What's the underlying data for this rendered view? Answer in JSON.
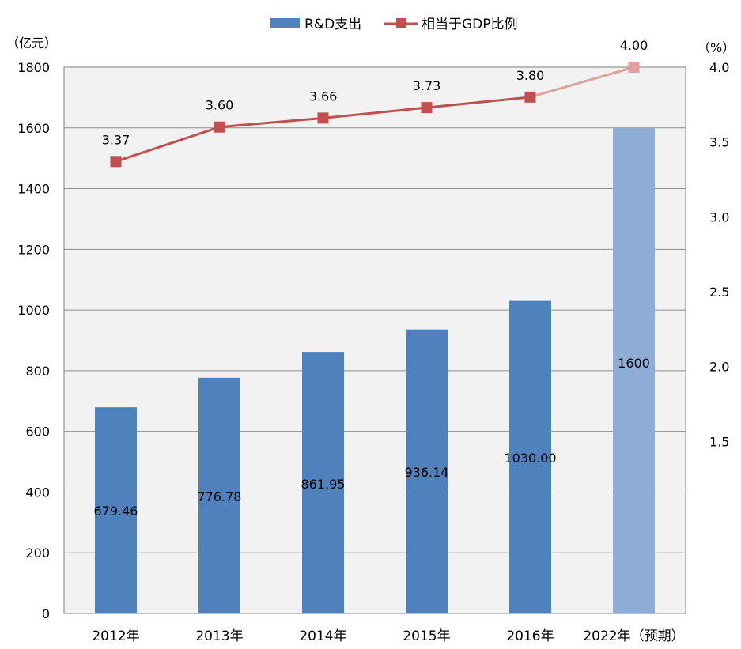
{
  "chart_data": {
    "type": "bar+line",
    "categories": [
      "2012年",
      "2013年",
      "2014年",
      "2015年",
      "2016年",
      "2022年（预期）"
    ],
    "series": [
      {
        "name": "R&D支出",
        "type": "bar",
        "axis": "left",
        "values": [
          679.46,
          776.78,
          861.95,
          936.14,
          1030.0,
          1600
        ],
        "labels": [
          "679.46",
          "776.78",
          "861.95",
          "936.14",
          "1030.00",
          "1600"
        ],
        "color": "#4F81BD",
        "projected_color": "#8EAED8"
      },
      {
        "name": "相当于GDP比例",
        "type": "line",
        "axis": "right",
        "values": [
          3.37,
          3.6,
          3.66,
          3.73,
          3.8,
          4.0
        ],
        "labels": [
          "3.37",
          "3.60",
          "3.66",
          "3.73",
          "3.80",
          "4.00"
        ],
        "color": "#C0504D",
        "projected_color": "#E0A0A0"
      }
    ],
    "y_left": {
      "unit_label": "（亿元）",
      "range": [
        0,
        1800
      ],
      "ticks": [
        "0",
        "200",
        "400",
        "600",
        "800",
        "1000",
        "1200",
        "1400",
        "1600",
        "1800"
      ]
    },
    "y_right": {
      "unit_label": "（%）",
      "ticks": [
        "1.5",
        "2.0",
        "2.5",
        "3.0",
        "3.5",
        "4.0"
      ],
      "tick_values": [
        1.5,
        2.0,
        2.5,
        3.0,
        3.5,
        4.0
      ],
      "range": [
        0.35,
        4.0
      ]
    },
    "grid": true,
    "legend": "top-center",
    "background": "#F2F2F2"
  }
}
